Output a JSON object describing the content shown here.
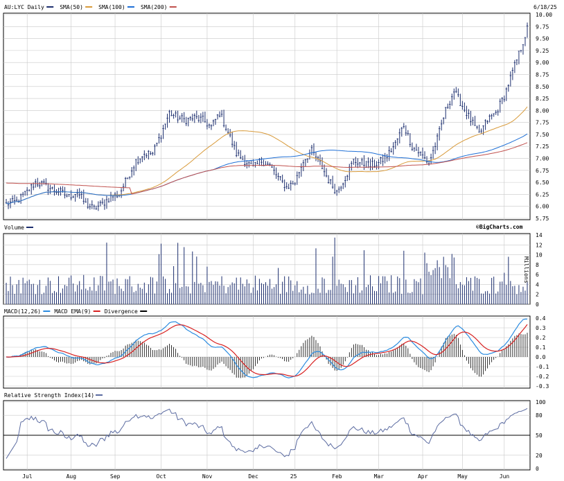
{
  "header": {
    "symbol_label": "AU:LYC Daily",
    "date": "6/18/25",
    "watermark": "©BigCharts.com"
  },
  "colors": {
    "price": "#1c2e6e",
    "sma50": "#d89a3a",
    "sma100": "#1e6fd6",
    "sma200": "#c0504d",
    "grid": "#c8c8c8",
    "macd": "#2a8be0",
    "signal": "#d82020",
    "divergence": "#000000",
    "rsi": "#5a6aa0"
  },
  "chart_data": [
    {
      "type": "line",
      "panel": "price",
      "legend": [
        {
          "label": "AU:LYC Daily",
          "key": "price"
        },
        {
          "label": "SMA(50)",
          "key": "sma50"
        },
        {
          "label": "SMA(100)",
          "key": "sma100"
        },
        {
          "label": "SMA(200)",
          "key": "sma200"
        }
      ],
      "yticks": [
        "10.00",
        "9.75",
        "9.50",
        "9.25",
        "9.00",
        "8.75",
        "8.50",
        "8.25",
        "8.00",
        "7.75",
        "7.50",
        "7.25",
        "7.00",
        "6.75",
        "6.50",
        "6.25",
        "6.00",
        "5.75"
      ],
      "ylim": [
        5.75,
        10.0
      ],
      "xticks": [
        "Jul",
        "Aug",
        "Sep",
        "Oct",
        "Nov",
        "Dec",
        "25",
        "Feb",
        "Mar",
        "Apr",
        "May",
        "Jun"
      ],
      "n_bars": 250,
      "series": [
        {
          "name": "price",
          "points": [
            [
              0,
              6.05
            ],
            [
              15,
              6.1
            ],
            [
              25,
              6.3
            ],
            [
              30,
              6.45
            ],
            [
              40,
              6.35
            ],
            [
              50,
              6.2
            ],
            [
              58,
              6.05
            ],
            [
              65,
              6.1
            ],
            [
              72,
              5.95
            ],
            [
              80,
              6.05
            ],
            [
              88,
              6.2
            ],
            [
              95,
              6.4
            ],
            [
              105,
              6.85
            ],
            [
              115,
              7.0
            ],
            [
              122,
              7.15
            ],
            [
              130,
              7.3
            ],
            [
              138,
              7.6
            ],
            [
              145,
              7.95
            ],
            [
              155,
              7.75
            ],
            [
              165,
              7.85
            ],
            [
              175,
              7.6
            ],
            [
              185,
              7.8
            ],
            [
              195,
              8.0
            ],
            [
              205,
              7.7
            ],
            [
              215,
              7.3
            ],
            [
              225,
              7.0
            ],
            [
              232,
              6.8
            ],
            [
              240,
              6.85
            ],
            [
              248,
              6.9
            ]
          ]
        }
      ]
    },
    {
      "type": "bar",
      "panel": "volume",
      "title": "Volume",
      "yticks": [
        "14",
        "12",
        "10",
        "8",
        "6",
        "4",
        "2",
        "0"
      ],
      "ylim": [
        0,
        14
      ],
      "unit": "Millions"
    },
    {
      "type": "line",
      "panel": "macd",
      "legend": [
        {
          "label": "MACD(12,26)",
          "key": "macd"
        },
        {
          "label": "MACD EMA(9)",
          "key": "signal"
        },
        {
          "label": "Divergence",
          "key": "divergence"
        }
      ],
      "yticks": [
        "0.4",
        "0.3",
        "0.2",
        "0.1",
        "0.0",
        "-0.1",
        "-0.2",
        "-0.3"
      ],
      "ylim": [
        -0.3,
        0.4
      ]
    },
    {
      "type": "line",
      "panel": "rsi",
      "title": "Relative Strength Index(14)",
      "yticks": [
        "100",
        "80",
        "50",
        "20",
        "0"
      ],
      "ylim": [
        0,
        100
      ],
      "midline": 50
    }
  ]
}
